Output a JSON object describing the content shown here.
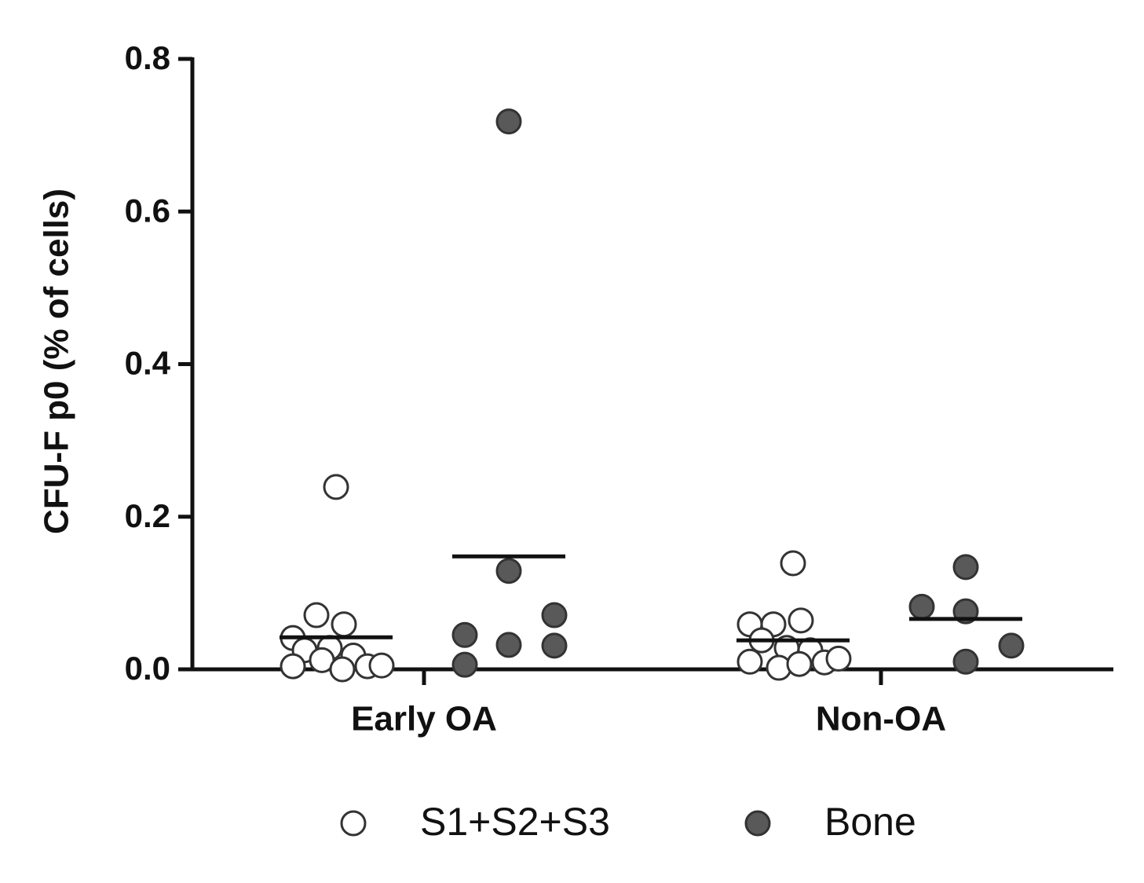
{
  "chart_data": {
    "type": "strip",
    "y_label": "CFU-F p0 (% of cells)",
    "categories": [
      "Early OA",
      "Non-OA"
    ],
    "ylim": [
      0,
      0.8
    ],
    "yticks": [
      {
        "value": 0,
        "label": "0.0"
      },
      0.2,
      0.4,
      0.6,
      0.8
    ],
    "series": [
      {
        "name": "S1+S2+S3",
        "color": "#ffffff",
        "values": [
          [
            0.239,
            0.071,
            0.059,
            0.041,
            0.025,
            0.028,
            0.018,
            0.004,
            0.012,
            0.0,
            0.004,
            0.005
          ],
          [
            0.139,
            0.059,
            0.064,
            0.059,
            0.038,
            0.028,
            0.025,
            0.01,
            0.002,
            0.007,
            0.009,
            0.014
          ]
        ],
        "means": [
          0.042,
          0.038
        ]
      },
      {
        "name": "Bone",
        "color": "#595959",
        "values": [
          [
            0.718,
            0.129,
            0.045,
            0.071,
            0.032,
            0.031,
            0.006
          ],
          [
            0.134,
            0.076,
            0.082,
            0.031,
            0.01
          ]
        ],
        "means": [
          0.148,
          0.066
        ]
      }
    ]
  }
}
